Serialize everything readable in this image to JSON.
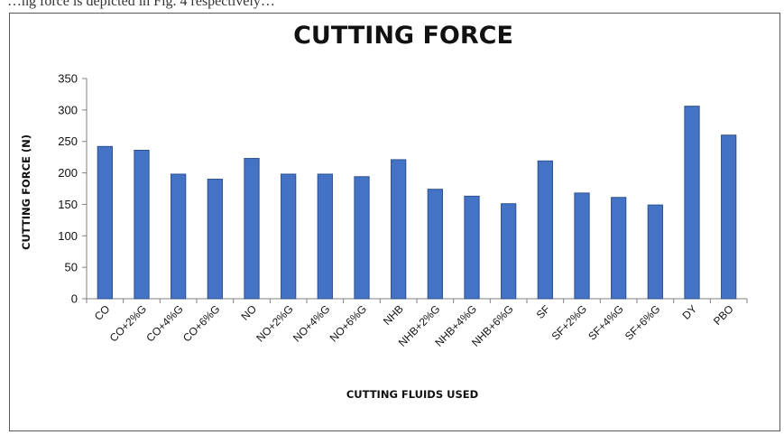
{
  "caption": {
    "text": "…ng force is depicted in Fig. 4 respectively…"
  },
  "chart_data": {
    "type": "bar",
    "title": "CUTTING FORCE",
    "xlabel": "CUTTING FLUIDS USED",
    "ylabel": "CUTTING FORCE (N)",
    "ylim": [
      0,
      350
    ],
    "yticks": [
      0,
      50,
      100,
      150,
      200,
      250,
      300,
      350
    ],
    "grid": false,
    "legend": "none",
    "bar_color": "#4472C4",
    "bar_edge_color": "#2F528F",
    "categories": [
      "CO",
      "CO+2%G",
      "CO+4%G",
      "CO+6%G",
      "NO",
      "NO+2%G",
      "NO+4%G",
      "NO+6%G",
      "NHB",
      "NHB+2%G",
      "NHB+4%G",
      "NHB+6%G",
      "SF",
      "SF+2%G",
      "SF+4%G",
      "SF+6%G",
      "DY",
      "PBO"
    ],
    "values": [
      242,
      236,
      198,
      190,
      223,
      198,
      198,
      194,
      221,
      174,
      163,
      151,
      219,
      168,
      161,
      149,
      306,
      260
    ]
  }
}
